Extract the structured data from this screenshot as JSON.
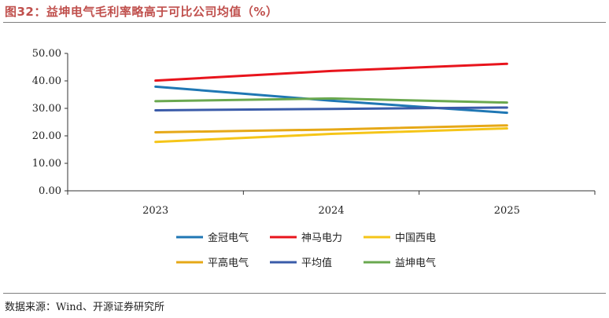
{
  "figure": {
    "title": "图32：益坤电气毛利率略高于可比公司均值（%）",
    "source": "数据来源：Wind、开源证券研究所"
  },
  "chart_data": {
    "type": "line",
    "x": [
      "2023",
      "2024",
      "2025"
    ],
    "ylim": [
      0,
      50
    ],
    "yticks": [
      "0.00",
      "10.00",
      "20.00",
      "30.00",
      "40.00",
      "50.00"
    ],
    "grid": false,
    "legend_position": "bottom",
    "series": [
      {
        "name": "金冠电气",
        "color": "#1f77b4",
        "values": [
          37.9,
          32.8,
          28.4
        ]
      },
      {
        "name": "神马电力",
        "color": "#e8141c",
        "values": [
          40.1,
          43.6,
          46.2
        ]
      },
      {
        "name": "中国西电",
        "color": "#f5c518",
        "values": [
          17.8,
          20.7,
          22.7
        ]
      },
      {
        "name": "平高电气",
        "color": "#e6a817",
        "values": [
          21.3,
          22.3,
          23.8
        ]
      },
      {
        "name": "平均值",
        "color": "#3a5ba9",
        "values": [
          29.3,
          29.8,
          30.3
        ]
      },
      {
        "name": "益坤电气",
        "color": "#6aa84f",
        "values": [
          32.6,
          33.6,
          32.1
        ]
      }
    ]
  }
}
